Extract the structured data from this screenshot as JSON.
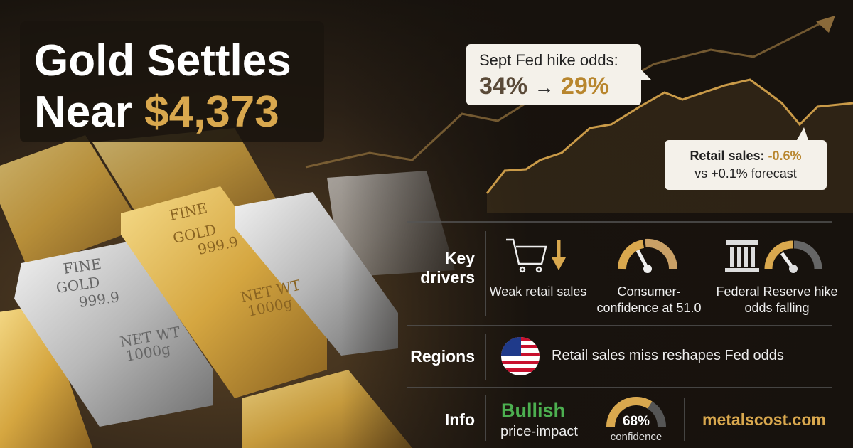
{
  "headline": {
    "line1": "Gold Settles",
    "near": "Near",
    "price": "$4,373"
  },
  "fed_callout": {
    "title": "Sept Fed hike odds:",
    "from": "34%",
    "arrow": "→",
    "to": "29%"
  },
  "retail_callout": {
    "title": "Retail sales:",
    "value": "-0.6%",
    "note": "vs +0.1% forecast"
  },
  "bar_engraving": {
    "fine": "FINE",
    "gold": "GOLD",
    "purity": "999.9",
    "net_wt": "NET WT",
    "weight": "1000g"
  },
  "key_drivers": {
    "label": "Key drivers",
    "items": [
      "Weak retail sales",
      "Consumer-confidence at 51.0",
      "Federal Reserve hike odds falling"
    ]
  },
  "regions": {
    "label": "Regions",
    "text": "Retail sales miss reshapes Fed odds"
  },
  "info": {
    "label": "Info",
    "sentiment": "Bullish",
    "sentiment_note": "price-impact",
    "confidence": {
      "value": 68,
      "label": "68%"
    },
    "confidence_note": "confidence",
    "source": "metalscost.com"
  }
}
